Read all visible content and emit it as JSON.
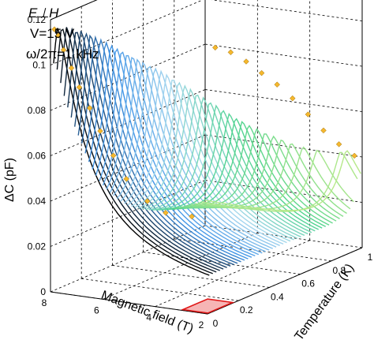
{
  "chart_data": {
    "type": "line",
    "projection": "3d",
    "annotations": [
      "E⊥H",
      "V=15 V",
      "ω/2π=1 kHz"
    ],
    "xlabel": "Temperature (K)",
    "ylabel": "Magnetic field (T)",
    "zlabel": "ΔC (pF)",
    "x_ticks": [
      "0",
      "0.2",
      "0.4",
      "0.6",
      "0.8",
      "1"
    ],
    "y_ticks": [
      "2",
      "4",
      "6",
      "8"
    ],
    "z_ticks": [
      "0",
      "0.02",
      "0.04",
      "0.06",
      "0.08",
      "0.1",
      "0.12"
    ],
    "xlim": [
      0,
      1
    ],
    "ylim": [
      2,
      8
    ],
    "zlim": [
      0,
      0.12
    ],
    "grid": true,
    "peak_projection_temperature_vs_field": {
      "marker": "diamond",
      "color": "#f5b82e",
      "points": [
        {
          "T": 0.98,
          "H": 2.6
        },
        {
          "T": 0.95,
          "H": 3.6
        },
        {
          "T": 0.9,
          "H": 4.3
        },
        {
          "T": 0.8,
          "H": 5.1
        },
        {
          "T": 0.7,
          "H": 5.6
        },
        {
          "T": 0.6,
          "H": 6.1
        },
        {
          "T": 0.5,
          "H": 6.5
        },
        {
          "T": 0.4,
          "H": 6.9
        },
        {
          "T": 0.3,
          "H": 7.2
        },
        {
          "T": 0.2,
          "H": 7.5
        },
        {
          "T": 0.1,
          "H": 7.7
        },
        {
          "T": 0.03,
          "H": 7.85
        }
      ]
    },
    "peak_projection_temperature_vs_capacitance": {
      "marker": "diamond",
      "color": "#f5b82e",
      "points": [
        {
          "T": 0.05,
          "C": 0.116
        },
        {
          "T": 0.15,
          "C": 0.111
        },
        {
          "T": 0.25,
          "C": 0.104
        },
        {
          "T": 0.35,
          "C": 0.096
        },
        {
          "T": 0.45,
          "C": 0.088
        },
        {
          "T": 0.55,
          "C": 0.079
        },
        {
          "T": 0.65,
          "C": 0.069
        },
        {
          "T": 0.75,
          "C": 0.059
        },
        {
          "T": 0.85,
          "C": 0.05
        },
        {
          "T": 0.95,
          "C": 0.042
        }
      ]
    },
    "colormap": [
      "#000000",
      "#3f93e6",
      "#a9d8ef",
      "#4fd38f",
      "#b7e98b"
    ],
    "highlight_region": {
      "fill": "#f6b5b5",
      "stroke": "#e01919"
    }
  }
}
